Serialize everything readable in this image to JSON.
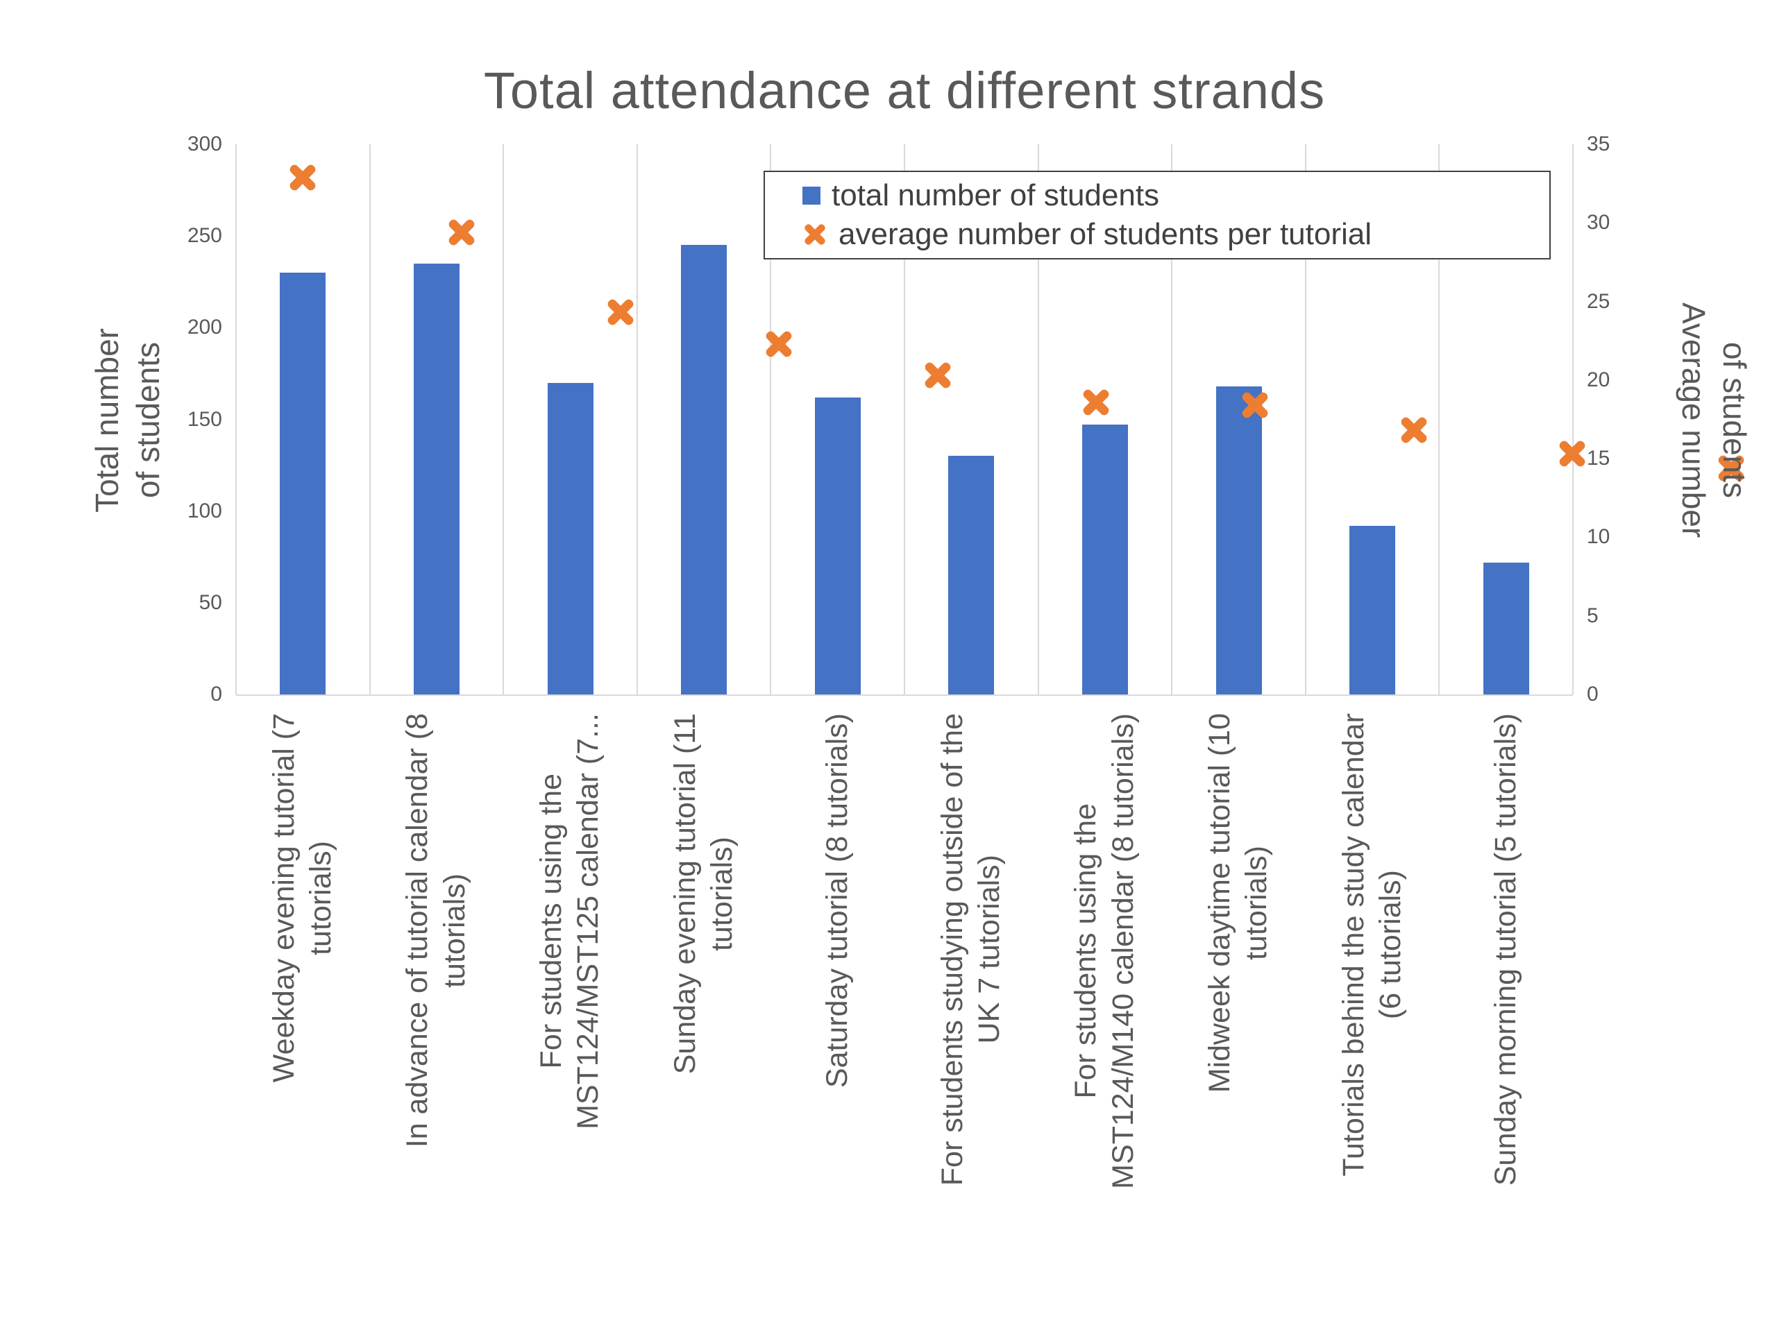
{
  "chart_data": {
    "type": "bar",
    "title": "Total attendance at different strands",
    "categories": [
      "Weekday evening tutorial (7 tutorials)",
      "In advance of tutorial calendar (8 tutorials)",
      "For students using the MST124/MST125 calendar (7...",
      "Sunday evening tutorial (11 tutorials)",
      "Saturday tutorial (8 tutorials)",
      "For students studying outside of the UK 7 tutorials)",
      "For students using the MST124/M140 calendar (8 tutorials)",
      "Midweek daytime tutorial (10 tutorials)",
      "Tutorials behind the study calendar (6 tutorials)",
      "Sunday morning tutorial (5 tutorials)"
    ],
    "categories_wrapped": [
      [
        "Weekday evening tutorial (7",
        "tutorials)"
      ],
      [
        "In advance of tutorial calendar (8",
        "tutorials)"
      ],
      [
        "For students using the",
        "MST124/MST125 calendar (7..."
      ],
      [
        "Sunday evening tutorial (11",
        "tutorials)"
      ],
      [
        "Saturday tutorial (8 tutorials)"
      ],
      [
        "For students studying outside of the",
        "UK 7 tutorials)"
      ],
      [
        "For students using the",
        "MST124/M140 calendar (8 tutorials)"
      ],
      [
        "Midweek daytime tutorial (10",
        "tutorials)"
      ],
      [
        "Tutorials behind the study calendar",
        "(6 tutorials)"
      ],
      [
        "Sunday morning tutorial (5 tutorials)"
      ]
    ],
    "series": [
      {
        "name": "total number of students",
        "type": "bar",
        "axis": "left",
        "color": "#4472C4",
        "values": [
          230,
          235,
          170,
          245,
          162,
          130,
          147,
          168,
          92,
          72
        ]
      },
      {
        "name": "average number of students per tutorial",
        "type": "scatter",
        "marker": "x",
        "axis": "right",
        "color": "#ED7D31",
        "values": [
          32.9,
          29.4,
          24.3,
          22.3,
          20.3,
          18.6,
          18.4,
          16.8,
          15.3,
          14.4
        ]
      }
    ],
    "left_axis": {
      "title": "Total number of students",
      "title_lines": [
        "Total number",
        "of students"
      ],
      "min": 0,
      "max": 300,
      "step": 50,
      "ticks": [
        0,
        50,
        100,
        150,
        200,
        250,
        300
      ]
    },
    "right_axis": {
      "title": "Average number of students",
      "title_lines": [
        "Average number",
        "of students"
      ],
      "min": 0,
      "max": 35,
      "step": 5,
      "ticks": [
        0,
        5,
        10,
        15,
        20,
        25,
        30,
        35
      ]
    },
    "legend": {
      "position": "top-inside",
      "items": [
        "total number of students",
        "average number of students per tutorial"
      ]
    },
    "grid": {
      "vertical": true,
      "horizontal": false,
      "color": "#D9D9D9"
    },
    "text_color": "#595959",
    "background": "#FFFFFF"
  }
}
